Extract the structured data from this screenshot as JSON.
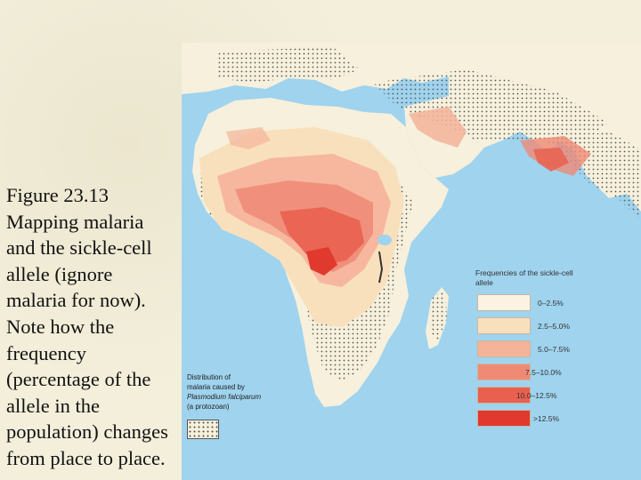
{
  "caption": {
    "line1": "Figure 23.13",
    "line2": "Mapping malaria",
    "line3": "and the sickle-cell",
    "line4": "allele (ignore",
    "line5": "malaria for now).",
    "line6": "Note how the",
    "line7": "frequency",
    "line8": "(percentage of the",
    "line9": "allele in the",
    "line10": "population) changes",
    "line11": "from place to place."
  },
  "legend": {
    "title": "Frequencies of the sickle-cell allele",
    "items": [
      {
        "label": "0–2.5%",
        "color": "#fbf2e2"
      },
      {
        "label": "2.5–5.0%",
        "color": "#f9e0bd"
      },
      {
        "label": "5.0–7.5%",
        "color": "#f5b39a"
      },
      {
        "label": "7.5–10.0%",
        "color": "#ef8a75"
      },
      {
        "label": "10.0–12.5%",
        "color": "#e9604f"
      },
      {
        "label": ">12.5%",
        "color": "#e0392e"
      }
    ]
  },
  "malaria": {
    "line1": "Distribution of",
    "line2": "malaria caused by",
    "line3": "Plasmodium falciparum",
    "line4": "(a protozoan)"
  },
  "colors": {
    "ocean": "#9fd3ee",
    "land": "#f6f0dc",
    "slide_background": "#f3efdb"
  }
}
